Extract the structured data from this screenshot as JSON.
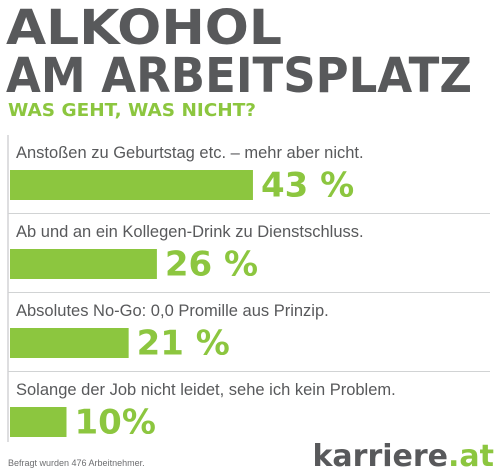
{
  "chart_data": {
    "type": "bar",
    "title": [
      "ALKOHOL",
      "AM ARBEITSPLATZ"
    ],
    "subtitle": "WAS GEHT, WAS NICHT?",
    "categories": [
      "Anstoßen zu Geburtstag etc. – mehr aber nicht.",
      "Ab und an ein Kollegen-Drink zu Dienstschluss.",
      "Absolutes No-Go: 0,0 Promille aus Prinzip.",
      "Solange der Job nicht leidet, sehe ich kein Problem."
    ],
    "values": [
      43,
      26,
      21,
      10
    ],
    "value_labels": [
      "43 %",
      "26 %",
      "21 %",
      "10%"
    ],
    "color": "#8cc63f",
    "footnote": "Befragt wurden 476 Arbeitnehmer.",
    "logo": [
      "karriere",
      ".at"
    ]
  }
}
